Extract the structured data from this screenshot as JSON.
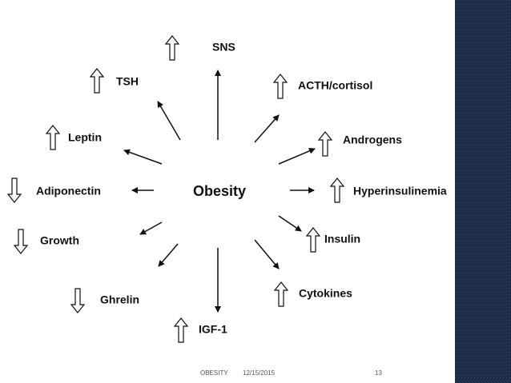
{
  "center": "Obesity",
  "nodes": [
    {
      "label": "SNS",
      "direction": "up"
    },
    {
      "label": "TSH",
      "direction": "up"
    },
    {
      "label": "ACTH/cortisol",
      "direction": "up"
    },
    {
      "label": "Leptin",
      "direction": "up"
    },
    {
      "label": "Androgens",
      "direction": "up"
    },
    {
      "label": "Adiponectin",
      "direction": "down"
    },
    {
      "label": "Hyperinsulinemia",
      "direction": "up"
    },
    {
      "label": "Growth",
      "direction": "down"
    },
    {
      "label": "Insulin",
      "direction": "up"
    },
    {
      "label": "Ghrelin",
      "direction": "down"
    },
    {
      "label": "Cytokines",
      "direction": "up"
    },
    {
      "label": "IGF-1",
      "direction": "up"
    }
  ],
  "footer": {
    "title": "OBESITY",
    "date": "12/15/2015",
    "page": "13"
  }
}
